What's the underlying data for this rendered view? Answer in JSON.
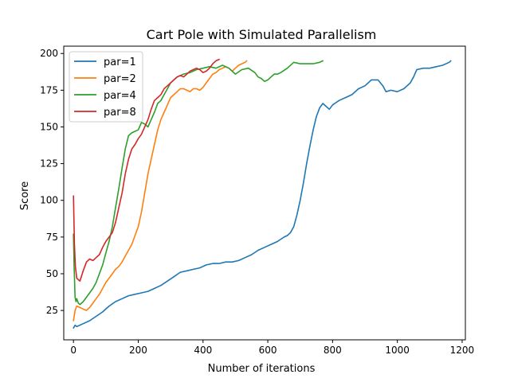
{
  "chart_data": {
    "type": "line",
    "title": "Cart Pole with Simulated Parallelism",
    "xlabel": "Number of iterations",
    "ylabel": "Score",
    "xlim": [
      -30,
      1210
    ],
    "ylim": [
      5,
      205
    ],
    "xticks": [
      0,
      200,
      400,
      600,
      800,
      1000,
      1200
    ],
    "yticks": [
      25,
      50,
      75,
      100,
      125,
      150,
      175,
      200
    ],
    "grid": false,
    "legend_position": "top-left",
    "series": [
      {
        "name": "par=1",
        "color": "#1f77b4",
        "x": [
          0,
          5,
          10,
          30,
          50,
          70,
          90,
          110,
          130,
          150,
          170,
          190,
          210,
          230,
          250,
          270,
          290,
          310,
          330,
          350,
          370,
          390,
          410,
          430,
          450,
          470,
          490,
          510,
          530,
          550,
          570,
          590,
          610,
          630,
          650,
          660,
          670,
          680,
          690,
          700,
          710,
          720,
          730,
          740,
          750,
          760,
          770,
          780,
          790,
          800,
          820,
          840,
          860,
          880,
          900,
          920,
          940,
          955,
          965,
          980,
          1000,
          1020,
          1040,
          1050,
          1060,
          1080,
          1100,
          1120,
          1140,
          1160,
          1165
        ],
        "y": [
          13,
          15,
          14,
          16,
          18,
          21,
          24,
          28,
          31,
          33,
          35,
          36,
          37,
          38,
          40,
          42,
          45,
          48,
          51,
          52,
          53,
          54,
          56,
          57,
          57,
          58,
          58,
          59,
          61,
          63,
          66,
          68,
          70,
          72,
          75,
          76,
          78,
          82,
          90,
          100,
          112,
          125,
          137,
          148,
          157,
          163,
          166,
          164,
          162,
          165,
          168,
          170,
          172,
          176,
          178,
          182,
          182,
          178,
          174,
          175,
          174,
          176,
          180,
          184,
          189,
          190,
          190,
          191,
          192,
          194,
          195
        ]
      },
      {
        "name": "par=2",
        "color": "#ff7f0e",
        "x": [
          0,
          5,
          10,
          20,
          30,
          40,
          50,
          60,
          70,
          80,
          90,
          100,
          110,
          120,
          130,
          140,
          150,
          160,
          170,
          180,
          190,
          200,
          210,
          220,
          230,
          240,
          250,
          260,
          270,
          280,
          290,
          300,
          310,
          320,
          330,
          340,
          350,
          360,
          370,
          380,
          390,
          400,
          410,
          420,
          430,
          440,
          450,
          460,
          470,
          480,
          490,
          500,
          510,
          520,
          530,
          535
        ],
        "y": [
          18,
          25,
          28,
          27,
          26,
          25,
          27,
          30,
          33,
          36,
          40,
          44,
          47,
          50,
          53,
          55,
          58,
          62,
          66,
          70,
          76,
          82,
          92,
          105,
          118,
          128,
          138,
          148,
          155,
          160,
          165,
          170,
          172,
          174,
          176,
          176,
          175,
          174,
          176,
          176,
          175,
          177,
          180,
          183,
          186,
          187,
          189,
          190,
          191,
          190,
          188,
          190,
          192,
          193,
          194,
          195
        ]
      },
      {
        "name": "par=4",
        "color": "#2ca02c",
        "x": [
          0,
          2,
          5,
          8,
          10,
          15,
          20,
          30,
          40,
          50,
          60,
          70,
          80,
          90,
          100,
          110,
          120,
          130,
          140,
          150,
          160,
          170,
          180,
          190,
          200,
          210,
          220,
          230,
          240,
          250,
          260,
          270,
          280,
          290,
          300,
          320,
          340,
          360,
          380,
          400,
          420,
          440,
          460,
          480,
          500,
          520,
          540,
          560,
          570,
          580,
          590,
          600,
          610,
          620,
          630,
          640,
          660,
          680,
          700,
          720,
          740,
          760,
          770
        ],
        "y": [
          77,
          55,
          34,
          31,
          33,
          30,
          29,
          31,
          34,
          37,
          40,
          44,
          50,
          56,
          64,
          72,
          82,
          95,
          108,
          122,
          135,
          144,
          146,
          147,
          148,
          153,
          152,
          150,
          155,
          160,
          166,
          168,
          172,
          176,
          180,
          184,
          186,
          187,
          189,
          190,
          191,
          190,
          192,
          190,
          186,
          189,
          190,
          187,
          184,
          183,
          181,
          182,
          184,
          186,
          186,
          187,
          190,
          194,
          193,
          193,
          193,
          194,
          195
        ]
      },
      {
        "name": "par=8",
        "color": "#d62728",
        "x": [
          0,
          3,
          6,
          10,
          15,
          20,
          30,
          40,
          50,
          60,
          70,
          80,
          90,
          100,
          110,
          120,
          130,
          140,
          150,
          160,
          170,
          180,
          190,
          200,
          210,
          220,
          230,
          240,
          250,
          260,
          270,
          280,
          290,
          300,
          310,
          320,
          330,
          340,
          350,
          360,
          370,
          380,
          390,
          400,
          410,
          420,
          430,
          440,
          450
        ],
        "y": [
          103,
          70,
          55,
          47,
          46,
          45,
          52,
          58,
          60,
          59,
          61,
          63,
          68,
          72,
          75,
          78,
          85,
          95,
          105,
          118,
          128,
          135,
          138,
          142,
          145,
          150,
          155,
          162,
          168,
          170,
          172,
          176,
          178,
          180,
          182,
          184,
          185,
          184,
          186,
          188,
          189,
          190,
          189,
          187,
          188,
          190,
          193,
          195,
          196
        ]
      }
    ]
  }
}
